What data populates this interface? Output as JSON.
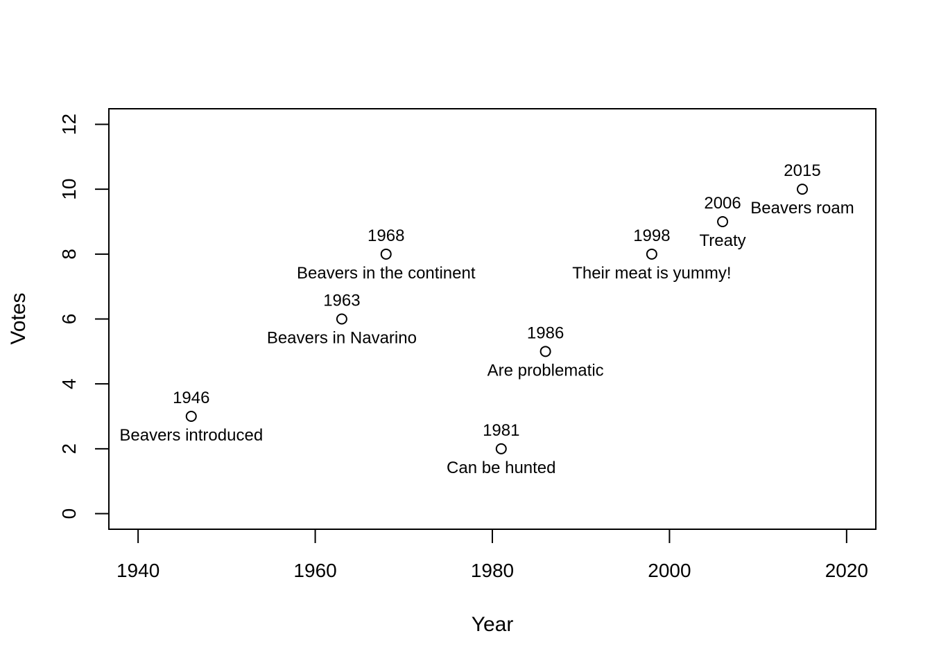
{
  "chart_data": {
    "type": "scatter",
    "title": "",
    "xlabel": "Year",
    "ylabel": "Votes",
    "xlim": [
      1936.7,
      2023.3
    ],
    "ylim": [
      -0.48,
      12.48
    ],
    "x_ticks": [
      1940,
      1960,
      1980,
      2000,
      2020
    ],
    "y_ticks": [
      0,
      2,
      4,
      6,
      8,
      10,
      12
    ],
    "grid": false,
    "legend": "none",
    "point_style": "open-circle",
    "colors": {
      "stroke": "#000000",
      "fill": "#ffffff",
      "background": "#ffffff"
    },
    "points": [
      {
        "x": 1946,
        "y": 3,
        "year_label": "1946",
        "event": "Beavers introduced"
      },
      {
        "x": 1963,
        "y": 6,
        "year_label": "1963",
        "event": "Beavers in Navarino"
      },
      {
        "x": 1968,
        "y": 8,
        "year_label": "1968",
        "event": "Beavers in the continent"
      },
      {
        "x": 1981,
        "y": 2,
        "year_label": "1981",
        "event": "Can be hunted"
      },
      {
        "x": 1986,
        "y": 5,
        "year_label": "1986",
        "event": "Are problematic"
      },
      {
        "x": 1998,
        "y": 8,
        "year_label": "1998",
        "event": "Their meat is yummy!"
      },
      {
        "x": 2006,
        "y": 9,
        "year_label": "2006",
        "event": "Treaty"
      },
      {
        "x": 2015,
        "y": 10,
        "year_label": "2015",
        "event": "Beavers roam"
      }
    ]
  }
}
